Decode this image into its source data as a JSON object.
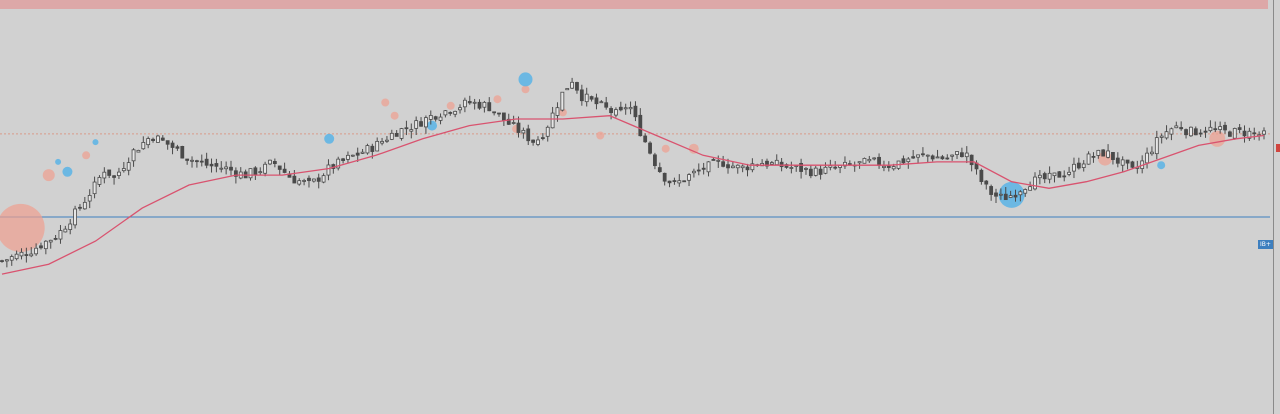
{
  "colors": {
    "background": "#d1d1d1",
    "top_bar": "#dda8a8",
    "candle": "#4a4a4a",
    "candle_up_fill": "#e6e6e6",
    "moving_average": "#d9536f",
    "support_line": "#3d7fbf",
    "level_line": "#d99b8a",
    "bubble_pink": "#f0a090",
    "bubble_blue": "#5ab4e6",
    "marker_tag": "#3d7fbf",
    "price_tag": "#d0453f"
  },
  "marker_tag_label": "IB+",
  "chart_data": {
    "type": "candlestick",
    "title": "",
    "xlabel": "",
    "ylabel": "",
    "grid": false,
    "ylim": [
      0,
      100
    ],
    "reference_lines": [
      {
        "kind": "horizontal",
        "value": 65.5,
        "color": "#d99b8a",
        "style": "dotted"
      },
      {
        "kind": "horizontal",
        "value": 40.3,
        "color": "#3d7fbf",
        "style": "solid"
      }
    ],
    "close_path": [
      [
        0,
        27
      ],
      [
        3,
        30
      ],
      [
        6,
        35
      ],
      [
        8,
        42
      ],
      [
        10,
        50
      ],
      [
        11,
        55
      ],
      [
        12,
        52
      ],
      [
        14,
        60
      ],
      [
        16,
        65
      ],
      [
        18,
        62
      ],
      [
        20,
        58
      ],
      [
        22,
        56
      ],
      [
        24,
        55
      ],
      [
        26,
        53
      ],
      [
        28,
        55
      ],
      [
        29,
        57
      ],
      [
        31,
        52
      ],
      [
        33,
        50
      ],
      [
        35,
        55
      ],
      [
        37,
        58
      ],
      [
        40,
        62
      ],
      [
        42,
        66
      ],
      [
        44,
        68
      ],
      [
        46,
        71
      ],
      [
        48,
        73
      ],
      [
        50,
        75
      ],
      [
        52,
        74
      ],
      [
        54,
        69
      ],
      [
        56,
        65
      ],
      [
        57,
        63
      ],
      [
        58,
        66
      ],
      [
        59,
        72
      ],
      [
        60,
        78
      ],
      [
        61,
        82
      ],
      [
        62,
        77
      ],
      [
        64,
        74
      ],
      [
        66,
        71
      ],
      [
        67,
        75
      ],
      [
        68,
        68
      ],
      [
        69,
        62
      ],
      [
        70,
        56
      ],
      [
        71,
        52
      ],
      [
        72,
        50
      ],
      [
        73,
        52
      ],
      [
        75,
        55
      ],
      [
        77,
        57
      ],
      [
        79,
        55
      ],
      [
        81,
        57
      ],
      [
        83,
        56
      ],
      [
        85,
        55
      ],
      [
        87,
        54
      ],
      [
        89,
        55
      ],
      [
        91,
        56
      ],
      [
        93,
        57
      ],
      [
        95,
        56
      ],
      [
        97,
        58
      ],
      [
        99,
        59
      ],
      [
        101,
        58
      ],
      [
        103,
        60
      ],
      [
        104,
        55
      ],
      [
        105,
        50
      ],
      [
        106,
        47
      ],
      [
        107,
        46
      ],
      [
        108,
        47
      ],
      [
        109,
        49
      ],
      [
        110,
        51
      ],
      [
        112,
        52
      ],
      [
        114,
        54
      ],
      [
        116,
        58
      ],
      [
        118,
        60
      ],
      [
        120,
        56
      ],
      [
        121,
        54
      ],
      [
        122,
        57
      ],
      [
        123,
        61
      ],
      [
        124,
        65
      ],
      [
        125,
        67
      ],
      [
        126,
        68
      ],
      [
        127,
        66
      ],
      [
        129,
        67
      ],
      [
        131,
        66
      ],
      [
        133,
        66
      ],
      [
        135,
        65
      ]
    ],
    "moving_average": [
      [
        0,
        23
      ],
      [
        5,
        26
      ],
      [
        10,
        33
      ],
      [
        15,
        43
      ],
      [
        20,
        50
      ],
      [
        25,
        53
      ],
      [
        30,
        53
      ],
      [
        35,
        55
      ],
      [
        40,
        59
      ],
      [
        45,
        64
      ],
      [
        50,
        68
      ],
      [
        55,
        70
      ],
      [
        60,
        70
      ],
      [
        65,
        71
      ],
      [
        70,
        65
      ],
      [
        75,
        59
      ],
      [
        80,
        56
      ],
      [
        85,
        56
      ],
      [
        90,
        56
      ],
      [
        95,
        56
      ],
      [
        100,
        57
      ],
      [
        104,
        57
      ],
      [
        108,
        51
      ],
      [
        112,
        49
      ],
      [
        116,
        51
      ],
      [
        120,
        54
      ],
      [
        124,
        58
      ],
      [
        128,
        62
      ],
      [
        132,
        64
      ],
      [
        135,
        65
      ]
    ],
    "bubbles": [
      {
        "x": 2,
        "y": 37,
        "r": 24,
        "color": "pink"
      },
      {
        "x": 5,
        "y": 53,
        "r": 6,
        "color": "pink"
      },
      {
        "x": 6,
        "y": 57,
        "r": 3,
        "color": "blue"
      },
      {
        "x": 7,
        "y": 54,
        "r": 5,
        "color": "blue"
      },
      {
        "x": 9,
        "y": 59,
        "r": 4,
        "color": "pink"
      },
      {
        "x": 10,
        "y": 63,
        "r": 3,
        "color": "blue"
      },
      {
        "x": 35,
        "y": 64,
        "r": 5,
        "color": "blue"
      },
      {
        "x": 41,
        "y": 75,
        "r": 4,
        "color": "pink"
      },
      {
        "x": 42,
        "y": 71,
        "r": 4,
        "color": "pink"
      },
      {
        "x": 46,
        "y": 68,
        "r": 5,
        "color": "blue"
      },
      {
        "x": 48,
        "y": 74,
        "r": 4,
        "color": "pink"
      },
      {
        "x": 53,
        "y": 76,
        "r": 4,
        "color": "pink"
      },
      {
        "x": 55,
        "y": 67,
        "r": 4,
        "color": "pink"
      },
      {
        "x": 56,
        "y": 79,
        "r": 4,
        "color": "pink"
      },
      {
        "x": 56,
        "y": 82,
        "r": 7,
        "color": "blue"
      },
      {
        "x": 60,
        "y": 72,
        "r": 4,
        "color": "pink"
      },
      {
        "x": 64,
        "y": 65,
        "r": 4,
        "color": "pink"
      },
      {
        "x": 71,
        "y": 61,
        "r": 4,
        "color": "pink"
      },
      {
        "x": 74,
        "y": 61,
        "r": 5,
        "color": "pink"
      },
      {
        "x": 108,
        "y": 47,
        "r": 13,
        "color": "blue"
      },
      {
        "x": 118,
        "y": 58,
        "r": 7,
        "color": "pink"
      },
      {
        "x": 124,
        "y": 56,
        "r": 4,
        "color": "blue"
      },
      {
        "x": 130,
        "y": 64,
        "r": 8,
        "color": "pink"
      }
    ]
  }
}
